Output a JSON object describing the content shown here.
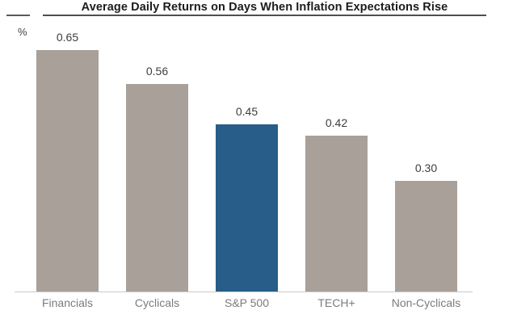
{
  "header": {
    "title": "Average Daily Returns on Days When Inflation Expectations Rise"
  },
  "axis": {
    "unit_label": "%"
  },
  "colors": {
    "bar_default": "#a8a099",
    "bar_highlight": "#275d88",
    "title_rule": "#4f4f4f",
    "axis_line": "#c9c9c9",
    "value_text": "#3d3d3d",
    "category_text": "#7b7b7b"
  },
  "chart_data": {
    "type": "bar",
    "title": "Average Daily Returns on Days When Inflation Expectations Rise",
    "xlabel": "",
    "ylabel": "%",
    "categories": [
      "Financials",
      "Cyclicals",
      "S&P 500",
      "TECH+",
      "Non-Cyclicals"
    ],
    "values": [
      0.65,
      0.56,
      0.45,
      0.42,
      0.3
    ],
    "value_labels": [
      "0.65",
      "0.56",
      "0.45",
      "0.42",
      "0.30"
    ],
    "bar_colors": [
      "#a8a099",
      "#a8a099",
      "#275d88",
      "#a8a099",
      "#a8a099"
    ],
    "highlight_category": "S&P 500",
    "ylim": [
      0,
      0.72
    ],
    "grid": false,
    "legend": false,
    "data_labels_position": "above-bar"
  }
}
